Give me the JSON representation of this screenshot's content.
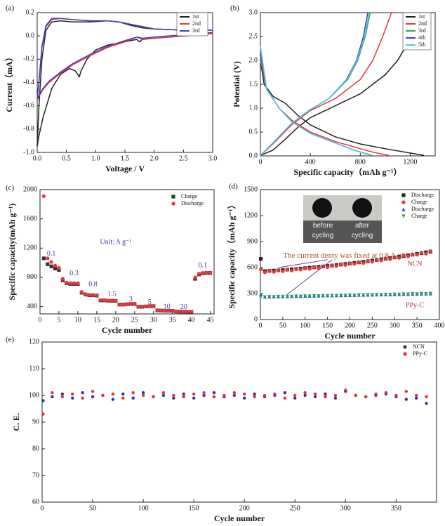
{
  "chart_data": [
    {
      "type": "line",
      "panel_label": "(a)",
      "xlabel": "Voltage / V",
      "ylabel": "Current（mA）",
      "xlim": [
        0,
        3.0
      ],
      "ylim": [
        -1.0,
        0.2
      ],
      "xticks": [
        {
          "value": 0,
          "label": "0.0"
        },
        0.5,
        {
          "value": 1,
          "label": "1.0"
        },
        1.5,
        {
          "value": 2,
          "label": "2.0"
        },
        2.5,
        {
          "value": 3,
          "label": "3.0"
        }
      ],
      "yticks": [
        {
          "value": -1,
          "label": "-1.0"
        },
        -0.8,
        -0.6,
        -0.4,
        -0.2,
        {
          "value": 0,
          "label": "0.0"
        },
        0.2
      ],
      "series": [
        {
          "name": "1st",
          "color": "#222222",
          "x": [
            3.0,
            2.5,
            2.0,
            1.8,
            1.75,
            1.7,
            1.5,
            1.2,
            1.0,
            0.85,
            0.75,
            0.72,
            0.65,
            0.55,
            0.4,
            0.25,
            0.1,
            0.02,
            0.0,
            0.03,
            0.08,
            0.15,
            0.25,
            0.4,
            0.6,
            0.9,
            1.2,
            1.4,
            1.6,
            1.8,
            2.0,
            2.5,
            3.0
          ],
          "values": [
            0.02,
            0.0,
            -0.02,
            -0.03,
            -0.05,
            -0.03,
            -0.05,
            -0.08,
            -0.12,
            -0.2,
            -0.3,
            -0.35,
            -0.3,
            -0.28,
            -0.33,
            -0.45,
            -0.7,
            -0.88,
            -0.95,
            -0.6,
            -0.2,
            0.05,
            0.12,
            0.13,
            0.12,
            0.12,
            0.13,
            0.12,
            0.09,
            0.07,
            0.06,
            0.05,
            0.05
          ]
        },
        {
          "name": "2nd",
          "color": "#e8343a",
          "x": [
            3.0,
            2.5,
            2.0,
            1.8,
            1.7,
            1.5,
            1.2,
            0.9,
            0.6,
            0.4,
            0.2,
            0.1,
            0.03,
            0.0,
            0.03,
            0.08,
            0.15,
            0.25,
            0.4,
            0.6,
            0.9,
            1.2,
            1.4,
            1.6,
            1.8,
            2.0,
            2.5,
            3.0
          ],
          "values": [
            0.02,
            0.0,
            -0.02,
            -0.03,
            -0.01,
            -0.05,
            -0.1,
            -0.17,
            -0.25,
            -0.32,
            -0.4,
            -0.46,
            -0.52,
            -0.55,
            -0.4,
            -0.1,
            0.08,
            0.14,
            0.15,
            0.14,
            0.13,
            0.13,
            0.12,
            0.1,
            0.08,
            0.06,
            0.05,
            0.05
          ]
        },
        {
          "name": "3rd",
          "color": "#3f3fbf",
          "x": [
            3.0,
            2.5,
            2.0,
            1.8,
            1.7,
            1.5,
            1.2,
            0.9,
            0.6,
            0.4,
            0.2,
            0.1,
            0.03,
            0.0,
            0.03,
            0.08,
            0.15,
            0.25,
            0.4,
            0.6,
            0.9,
            1.2,
            1.4,
            1.6,
            1.8,
            2.0,
            2.5,
            3.0
          ],
          "values": [
            0.03,
            0.01,
            -0.01,
            -0.02,
            -0.01,
            -0.04,
            -0.09,
            -0.16,
            -0.24,
            -0.31,
            -0.39,
            -0.45,
            -0.51,
            -0.54,
            -0.39,
            -0.09,
            0.09,
            0.15,
            0.15,
            0.14,
            0.13,
            0.13,
            0.12,
            0.1,
            0.08,
            0.06,
            0.05,
            0.05
          ]
        }
      ]
    },
    {
      "type": "line",
      "panel_label": "(b)",
      "xlabel": "Specific capacity（mAh g⁻¹）",
      "ylabel": "Potential (V)",
      "xlim": [
        0,
        1400
      ],
      "ylim": [
        0,
        3.0
      ],
      "xticks": [
        0,
        400,
        800,
        1200
      ],
      "yticks": [
        {
          "value": 0,
          "label": "0.0"
        },
        0.5,
        {
          "value": 1,
          "label": "1.0"
        },
        1.5,
        {
          "value": 2,
          "label": "2.0"
        },
        2.5,
        {
          "value": 3,
          "label": "3.0"
        }
      ],
      "series": [
        {
          "name": "1st",
          "color": "#222222",
          "x": [
            0,
            30,
            100,
            200,
            300,
            400,
            600,
            800,
            1000,
            1200,
            1310,
            null,
            0,
            100,
            200,
            300,
            400,
            600,
            800,
            1000,
            1100,
            1200,
            1280
          ],
          "values": [
            2.0,
            1.5,
            1.25,
            1.1,
            0.85,
            0.65,
            0.4,
            0.25,
            0.15,
            0.06,
            0.01,
            null,
            0.01,
            0.12,
            0.35,
            0.6,
            0.8,
            1.05,
            1.3,
            1.7,
            2.0,
            2.45,
            3.0
          ]
        },
        {
          "name": "2nd",
          "color": "#e8343a",
          "x": [
            0,
            50,
            150,
            250,
            400,
            600,
            800,
            900,
            1030,
            null,
            0,
            100,
            250,
            400,
            600,
            800,
            900,
            980,
            1050
          ],
          "values": [
            2.0,
            1.4,
            1.0,
            0.75,
            0.5,
            0.3,
            0.15,
            0.08,
            0.01,
            null,
            0.01,
            0.25,
            0.65,
            0.95,
            1.2,
            1.6,
            2.0,
            2.5,
            3.0
          ]
        },
        {
          "name": "3rd",
          "color": "#2eaa4a",
          "x": [
            0,
            50,
            150,
            250,
            400,
            600,
            750,
            900,
            null,
            0,
            100,
            250,
            400,
            550,
            700,
            780,
            840,
            880
          ],
          "values": [
            2.1,
            1.4,
            1.0,
            0.72,
            0.47,
            0.27,
            0.12,
            0.01,
            null,
            0.01,
            0.27,
            0.68,
            0.97,
            1.2,
            1.6,
            2.0,
            2.5,
            3.0
          ]
        },
        {
          "name": "4th",
          "color": "#3f3fbf",
          "x": [
            0,
            50,
            150,
            250,
            400,
            600,
            750,
            890,
            null,
            0,
            100,
            250,
            400,
            550,
            690,
            770,
            825,
            860
          ],
          "values": [
            2.2,
            1.4,
            1.0,
            0.72,
            0.47,
            0.27,
            0.12,
            0.01,
            null,
            0.01,
            0.27,
            0.68,
            0.97,
            1.2,
            1.6,
            2.0,
            2.5,
            3.0
          ]
        },
        {
          "name": "5th",
          "color": "#4ec8e8",
          "x": [
            0,
            50,
            150,
            250,
            400,
            600,
            750,
            895,
            null,
            0,
            100,
            250,
            400,
            550,
            695,
            775,
            835,
            870
          ],
          "values": [
            2.3,
            1.4,
            1.0,
            0.72,
            0.47,
            0.27,
            0.12,
            0.01,
            null,
            0.01,
            0.27,
            0.68,
            0.97,
            1.2,
            1.6,
            2.0,
            2.5,
            3.0
          ]
        }
      ]
    },
    {
      "type": "scatter",
      "panel_label": "(c)",
      "xlabel": "Cycle number",
      "ylabel": "Specific capacity(mAh g⁻¹)",
      "xlim": [
        0,
        46
      ],
      "ylim": [
        300,
        2000
      ],
      "xticks": [
        0,
        5,
        10,
        15,
        20,
        25,
        30,
        35,
        40,
        45
      ],
      "yticks": [
        400,
        800,
        1200,
        1600,
        2000
      ],
      "annotations": [
        "0.1",
        "0.3",
        "0.8",
        "1.5",
        "3",
        "5",
        "10",
        "20",
        "0.1",
        "Unit:  A g⁻¹"
      ],
      "x": [
        1,
        2,
        3,
        4,
        5,
        6,
        7,
        8,
        9,
        10,
        11,
        12,
        13,
        14,
        15,
        16,
        17,
        18,
        19,
        20,
        21,
        22,
        23,
        24,
        25,
        26,
        27,
        28,
        29,
        30,
        31,
        32,
        33,
        34,
        35,
        36,
        37,
        38,
        39,
        40,
        41,
        42,
        43,
        44,
        45
      ],
      "series": [
        {
          "name": "Charge",
          "color": "#333333",
          "marker": "square",
          "values": [
            1060,
            980,
            950,
            920,
            900,
            760,
            720,
            710,
            710,
            710,
            590,
            565,
            555,
            555,
            550,
            485,
            485,
            480,
            480,
            478,
            428,
            428,
            432,
            436,
            436,
            398,
            398,
            402,
            406,
            406,
            348,
            346,
            343,
            343,
            343,
            333,
            331,
            331,
            328,
            328,
            780,
            840,
            855,
            860,
            860
          ]
        },
        {
          "name": "Discharge",
          "color": "#e8343a",
          "marker": "circle",
          "values": [
            1910,
            1060,
            1010,
            960,
            930,
            780,
            730,
            720,
            720,
            720,
            600,
            570,
            560,
            560,
            555,
            490,
            490,
            485,
            485,
            480,
            430,
            430,
            435,
            440,
            440,
            400,
            400,
            405,
            410,
            410,
            350,
            348,
            345,
            345,
            345,
            335,
            333,
            333,
            330,
            330,
            800,
            850,
            860,
            865,
            865
          ]
        }
      ]
    },
    {
      "type": "scatter",
      "panel_label": "(d)",
      "xlabel": "Cycle number",
      "ylabel": "Specific capacity（mAh g⁻¹）",
      "xlim": [
        0,
        400
      ],
      "ylim": [
        0,
        1500
      ],
      "xticks": [
        0,
        50,
        100,
        150,
        200,
        250,
        300,
        350,
        400
      ],
      "yticks": [
        0,
        300,
        600,
        900,
        1200,
        1500
      ],
      "annotations": [
        "The current denty was fixed at 0.8 A g⁻¹",
        "NCN",
        "PPy-C"
      ],
      "inset_labels": [
        "before cycling",
        "after cycling"
      ],
      "x": [
        1,
        10,
        20,
        30,
        40,
        50,
        60,
        70,
        80,
        90,
        100,
        110,
        120,
        130,
        140,
        150,
        160,
        170,
        180,
        190,
        200,
        210,
        220,
        230,
        240,
        250,
        260,
        270,
        280,
        290,
        300,
        310,
        320,
        330,
        340,
        350,
        360,
        370,
        380
      ],
      "series": [
        {
          "name": "Discharge",
          "color": "#222222",
          "marker": "square",
          "values": [
            700,
            558,
            561,
            565,
            568,
            572,
            576,
            580,
            584,
            588,
            593,
            598,
            603,
            608,
            613,
            618,
            623,
            629,
            635,
            641,
            647,
            653,
            660,
            666,
            673,
            680,
            687,
            694,
            702,
            709,
            717,
            725,
            733,
            741,
            749,
            758,
            767,
            776,
            784
          ]
        },
        {
          "name": "Charge",
          "color": "#e83838",
          "marker": "circle",
          "values": [
            580,
            545,
            560,
            550,
            568,
            558,
            575,
            565,
            584,
            576,
            590,
            585,
            603,
            595,
            614,
            605,
            626,
            618,
            640,
            630,
            648,
            643,
            660,
            652,
            676,
            668,
            690,
            682,
            705,
            698,
            720,
            712,
            740,
            730,
            752,
            748,
            770,
            760,
            790
          ]
        },
        {
          "name": "Discharge",
          "color": "#3050d0",
          "marker": "triangle",
          "values": [
            290,
            262,
            264,
            265,
            266,
            267,
            268,
            269,
            270,
            271,
            272,
            273,
            274,
            275,
            276,
            277,
            278,
            279,
            280,
            281,
            282,
            283,
            284,
            285,
            286,
            287,
            288,
            289,
            290,
            291,
            292,
            293,
            294,
            295,
            296,
            297,
            298,
            299,
            300
          ]
        },
        {
          "name": "Charge",
          "color": "#20a060",
          "marker": "triangle-down",
          "values": [
            260,
            258,
            262,
            260,
            264,
            262,
            266,
            264,
            268,
            266,
            270,
            268,
            272,
            270,
            274,
            272,
            276,
            274,
            278,
            276,
            280,
            278,
            282,
            280,
            284,
            282,
            286,
            284,
            288,
            286,
            290,
            288,
            292,
            290,
            294,
            292,
            296,
            294,
            298
          ]
        }
      ]
    },
    {
      "type": "scatter",
      "panel_label": "(e)",
      "xlabel": "Cycle number",
      "ylabel": "C. E.",
      "xlim": [
        0,
        390
      ],
      "ylim": [
        60,
        120
      ],
      "xticks": [
        0,
        50,
        100,
        150,
        200,
        250,
        300,
        350
      ],
      "yticks": [
        60,
        70,
        80,
        90,
        100,
        110,
        120
      ],
      "x": [
        1,
        10,
        20,
        30,
        40,
        50,
        60,
        70,
        80,
        90,
        100,
        110,
        120,
        130,
        140,
        150,
        160,
        170,
        180,
        190,
        200,
        210,
        220,
        230,
        240,
        250,
        260,
        270,
        280,
        290,
        300,
        310,
        320,
        330,
        340,
        350,
        360,
        370,
        380
      ],
      "series": [
        {
          "name": "NCN",
          "color": "#3030b0",
          "marker": "circle",
          "values": [
            98,
            99.5,
            100.5,
            99,
            101,
            99.5,
            100,
            98.5,
            100.5,
            99,
            101,
            99.5,
            100,
            99,
            100.5,
            99,
            100,
            101,
            99.5,
            100,
            99,
            100.5,
            99.5,
            100,
            101,
            99,
            100,
            99.5,
            100.5,
            99,
            101.5,
            100,
            99.5,
            100,
            100.5,
            99.5,
            98.5,
            99,
            97
          ]
        },
        {
          "name": "PPy-C",
          "color": "#e83030",
          "marker": "circle",
          "values": [
            93,
            101,
            99.5,
            100.5,
            99,
            101.5,
            100,
            100.5,
            99,
            101,
            100,
            99.5,
            101,
            100,
            99.5,
            100.5,
            101,
            99.5,
            100,
            101,
            100.5,
            99.5,
            100,
            100.5,
            99,
            100,
            101,
            100.5,
            99.5,
            100,
            102,
            100,
            99.5,
            100.5,
            101,
            100,
            101.5,
            100,
            99.5
          ]
        }
      ]
    }
  ]
}
